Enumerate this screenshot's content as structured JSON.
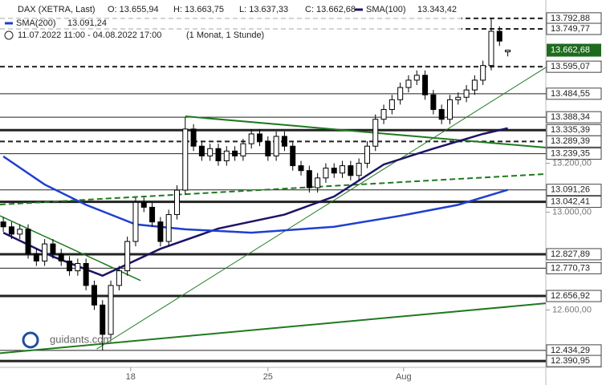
{
  "chart_data": {
    "type": "candlestick",
    "title": "DAX (XETRA, Last)",
    "ohlc_labels": [
      "O: 13.655,94",
      "H: 13.663,75",
      "L: 13.637,33",
      "C: 13.662,68"
    ],
    "period": "11.07.2022 11:00 - 04.08.2022 17:00",
    "interval": "(1 Monat, 1 Stunde)",
    "logo": "guidants.com",
    "xlim": [
      -0.4,
      65.6
    ],
    "ylim": [
      12365,
      13868
    ],
    "xticks": [
      {
        "value": 15.4,
        "label": "18"
      },
      {
        "value": 32,
        "label": "25"
      },
      {
        "value": 48.4,
        "label": "Aug"
      }
    ],
    "yticks": [
      {
        "value": 13200,
        "label": "13.200,00"
      },
      {
        "value": 13000,
        "label": "13.000,00"
      },
      {
        "value": 12600,
        "label": "12.600,00"
      }
    ],
    "up_color": "#ffffff",
    "down_color": "#000000",
    "open": [
      12960,
      12940,
      12910,
      12930,
      12830,
      12800,
      12870,
      12830,
      12800,
      12760,
      12790,
      12700,
      12620,
      12500,
      12700,
      12760,
      12880,
      13040,
      13020,
      12960,
      12880,
      12990,
      13090,
      13340,
      13270,
      13230,
      13260,
      13210,
      13250,
      13230,
      13280,
      13320,
      13290,
      13230,
      13310,
      13270,
      13190,
      13170,
      13100,
      13140,
      13180,
      13160,
      13190,
      13150,
      13200,
      13270,
      13380,
      13420,
      13460,
      13510,
      13540,
      13560,
      13480,
      13420,
      13380,
      13460,
      13470,
      13500,
      13540,
      13600,
      13740,
      13655.94
    ],
    "high": [
      12980,
      12960,
      12950,
      12950,
      12850,
      12890,
      12890,
      12850,
      12820,
      12810,
      12810,
      12720,
      12640,
      12720,
      12780,
      12900,
      13060,
      13060,
      13040,
      12980,
      13010,
      13110,
      13388.34,
      13360,
      13290,
      13280,
      13280,
      13270,
      13270,
      13300,
      13340,
      13340,
      13310,
      13330,
      13330,
      13290,
      13210,
      13190,
      13160,
      13200,
      13200,
      13210,
      13210,
      13220,
      13290,
      13400,
      13440,
      13480,
      13530,
      13560,
      13580,
      13580,
      13500,
      13440,
      13480,
      13490,
      13520,
      13560,
      13620,
      13792.88,
      13760,
      13663.75
    ],
    "low": [
      12920,
      12890,
      12890,
      12810,
      12780,
      12780,
      12810,
      12780,
      12740,
      12740,
      12680,
      12600,
      12434.29,
      12480,
      12680,
      12740,
      12860,
      13000,
      12940,
      12860,
      12860,
      12970,
      13070,
      13250,
      13210,
      13210,
      13190,
      13190,
      13210,
      13210,
      13260,
      13270,
      13210,
      13210,
      13250,
      13170,
      13150,
      13080,
      13080,
      13120,
      13140,
      13140,
      13130,
      13130,
      13180,
      13250,
      13360,
      13400,
      13440,
      13490,
      13520,
      13460,
      13400,
      13360,
      13360,
      13440,
      13450,
      13480,
      13520,
      13580,
      13680,
      13637.33
    ],
    "close": [
      12940,
      12910,
      12930,
      12830,
      12800,
      12870,
      12830,
      12800,
      12760,
      12790,
      12700,
      12620,
      12500,
      12700,
      12760,
      12880,
      13040,
      13020,
      12960,
      12880,
      12990,
      13090,
      13340,
      13270,
      13230,
      13260,
      13210,
      13250,
      13230,
      13280,
      13320,
      13290,
      13230,
      13310,
      13270,
      13190,
      13170,
      13100,
      13140,
      13180,
      13160,
      13190,
      13150,
      13200,
      13270,
      13380,
      13420,
      13460,
      13510,
      13540,
      13560,
      13480,
      13420,
      13380,
      13460,
      13470,
      13500,
      13540,
      13600,
      13740,
      13700,
      13662.68
    ],
    "series": [
      {
        "name": "SMA(100)",
        "value_label": "13.343,42",
        "color": "#1c1466",
        "x": [
          0,
          6,
          12,
          19,
          26,
          34,
          40,
          46,
          52,
          58,
          61
        ],
        "values": [
          12916,
          12818,
          12740,
          12850,
          12933,
          12990,
          13064,
          13195,
          13260,
          13320,
          13343.42
        ]
      },
      {
        "name": "SMA(200)",
        "value_label": "13.091,24",
        "color": "#1f3fd0",
        "x": [
          0,
          5,
          10,
          16,
          22,
          30,
          40,
          48,
          55,
          61
        ],
        "values": [
          13228,
          13113,
          13030,
          12950,
          12930,
          12916,
          12940,
          12985,
          13030,
          13091.24
        ]
      }
    ],
    "trendlines": [
      {
        "x": [
          -0.4,
          16.6
        ],
        "values": [
          12985,
          12720
        ],
        "color": "#1f7a1f",
        "dash": false,
        "width": 1.5
      },
      {
        "x": [
          22,
          65.6
        ],
        "values": [
          13392,
          13264
        ],
        "color": "#1f7a1f",
        "dash": false,
        "width": 2
      },
      {
        "x": [
          11.3,
          65.6
        ],
        "values": [
          12440,
          13592
        ],
        "color": "#1f7a1f",
        "dash": false,
        "width": 1
      },
      {
        "x": [
          -0.4,
          65.6
        ],
        "values": [
          13031,
          13156
        ],
        "color": "#1f7a1f",
        "dash": true,
        "width": 2
      },
      {
        "x": [
          -0.4,
          65.6
        ],
        "values": [
          12423,
          12627
        ],
        "color": "#1f7a1f",
        "dash": false,
        "width": 2
      }
    ],
    "levels": [
      {
        "value": 13792.88,
        "label": "13.792,88",
        "style": "dashed"
      },
      {
        "value": 13749.77,
        "label": "13.749,77",
        "style": "dashed"
      },
      {
        "value": 13595.07,
        "label": "13.595,07",
        "style": "dashed"
      },
      {
        "value": 13484.55,
        "label": "13.484,55",
        "style": "thin"
      },
      {
        "value": 13388.34,
        "label": "13.388,34",
        "style": "thin"
      },
      {
        "value": 13335.39,
        "label": "13.335,39",
        "style": "thick"
      },
      {
        "value": 13289.39,
        "label": "13.289,39",
        "style": "dashed"
      },
      {
        "value": 13239.35,
        "label": "13.239,35",
        "style": "thin"
      },
      {
        "value": 13091.26,
        "label": "13.091,26",
        "style": "thin"
      },
      {
        "value": 13042.41,
        "label": "13.042,41",
        "style": "thick"
      },
      {
        "value": 12827.89,
        "label": "12.827,89",
        "style": "thick"
      },
      {
        "value": 12770.73,
        "label": "12.770,73",
        "style": "thin"
      },
      {
        "value": 12656.92,
        "label": "12.656,92",
        "style": "thick"
      },
      {
        "value": 12434.29,
        "label": "12.434,29",
        "style": "thin"
      },
      {
        "value": 12390.95,
        "label": "12.390,95",
        "style": "thick"
      }
    ],
    "current": {
      "value": 13662.68,
      "label": "13.662,68",
      "color": "#1e6b1e"
    }
  }
}
